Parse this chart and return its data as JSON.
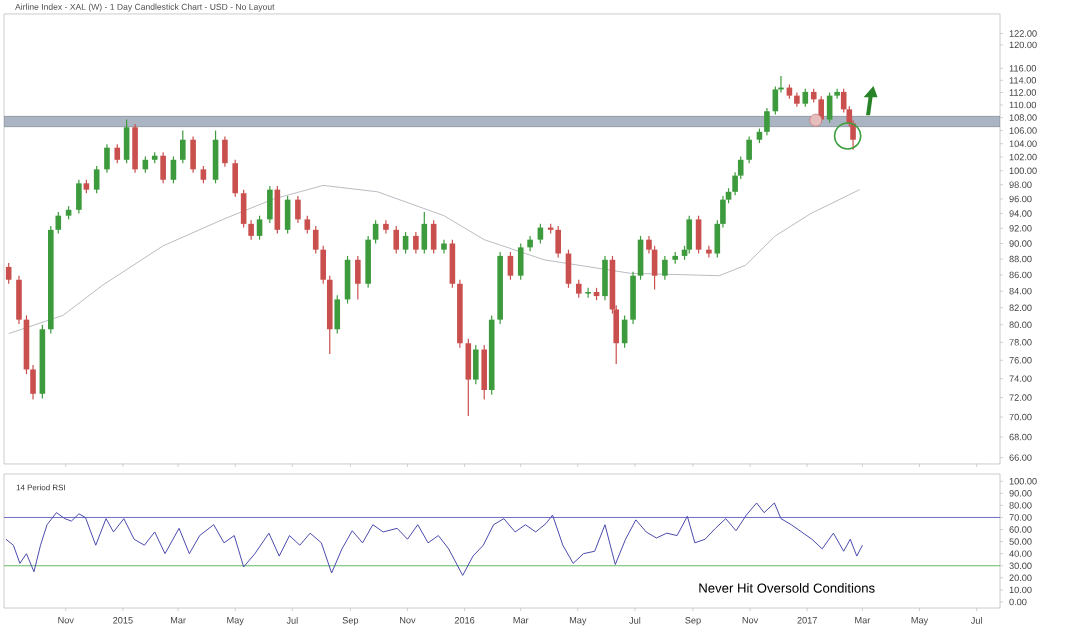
{
  "chart_data": [
    {
      "type": "candlestick",
      "title": "Airline Index - XAL (W) - 1 Day Candlestick Chart - USD - No Layout",
      "log": true,
      "tick_labels": "y",
      "xlim": [
        "2014-08-27",
        "2017-07-26"
      ],
      "xticks": [
        {
          "value": "2014-11-01",
          "label": null
        },
        {
          "value": "2015-01-01",
          "label": null
        },
        {
          "value": "2015-03-01",
          "label": null
        },
        {
          "value": "2015-05-01",
          "label": null
        },
        {
          "value": "2015-07-01",
          "label": null
        },
        {
          "value": "2015-09-01",
          "label": null
        },
        {
          "value": "2015-11-01",
          "label": null
        },
        {
          "value": "2016-01-01",
          "label": null
        },
        {
          "value": "2016-03-01",
          "label": null
        },
        {
          "value": "2016-05-01",
          "label": null
        },
        {
          "value": "2016-07-01",
          "label": null
        },
        {
          "value": "2016-09-01",
          "label": null
        },
        {
          "value": "2016-11-01",
          "label": null
        },
        {
          "value": "2017-01-01",
          "label": null
        },
        {
          "value": "2017-03-01",
          "label": null
        },
        {
          "value": "2017-05-01",
          "label": null
        },
        {
          "value": "2017-07-01",
          "label": null
        }
      ],
      "ylim": [
        65.4,
        125.5
      ],
      "yticks": [
        {
          "value": 66,
          "label": "66.00"
        },
        {
          "value": 68,
          "label": "68.00"
        },
        {
          "value": 70,
          "label": "70.00"
        },
        {
          "value": 72,
          "label": "72.00"
        },
        {
          "value": 74,
          "label": "74.00"
        },
        {
          "value": 76,
          "label": "76.00"
        },
        {
          "value": 78,
          "label": "78.00"
        },
        {
          "value": 80,
          "label": "80.00"
        },
        {
          "value": 82,
          "label": "82.00"
        },
        {
          "value": 84,
          "label": "84.00"
        },
        {
          "value": 86,
          "label": "86.00"
        },
        {
          "value": 88,
          "label": "88.00"
        },
        {
          "value": 90,
          "label": "90.00"
        },
        {
          "value": 92,
          "label": "92.00"
        },
        {
          "value": 94,
          "label": "94.00"
        },
        {
          "value": 96,
          "label": "96.00"
        },
        {
          "value": 98,
          "label": "98.00"
        },
        {
          "value": 100,
          "label": "100.00"
        },
        {
          "value": 102,
          "label": "102.00"
        },
        {
          "value": 104,
          "label": "104.00"
        },
        {
          "value": 106,
          "label": "106.00"
        },
        {
          "value": 108,
          "label": "108.00"
        },
        {
          "value": 110,
          "label": "110.00"
        },
        {
          "value": 112,
          "label": "112.00"
        },
        {
          "value": 114,
          "label": "114.00"
        },
        {
          "value": 116,
          "label": "116.00"
        },
        {
          "value": 120,
          "label": "120.00"
        },
        {
          "value": 122,
          "label": "122.00"
        }
      ],
      "bands": [
        {
          "axis": "y",
          "from": 106.6,
          "to": 108.2,
          "color": "#aab4c2"
        }
      ],
      "x": [
        "2014-09-01",
        "2014-09-12",
        "2014-09-20",
        "2014-09-27",
        "2014-10-07",
        "2014-10-16",
        "2014-10-24",
        "2014-11-04",
        "2014-11-15",
        "2014-11-23",
        "2014-12-04",
        "2014-12-15",
        "2014-12-26",
        "2015-01-05",
        "2015-01-14",
        "2015-01-25",
        "2015-02-04",
        "2015-02-13",
        "2015-02-24",
        "2015-03-06",
        "2015-03-17",
        "2015-03-28",
        "2015-04-10",
        "2015-04-20",
        "2015-05-01",
        "2015-05-10",
        "2015-05-18",
        "2015-05-27",
        "2015-06-07",
        "2015-06-15",
        "2015-06-26",
        "2015-07-07",
        "2015-07-17",
        "2015-07-26",
        "2015-08-03",
        "2015-08-10",
        "2015-08-18",
        "2015-08-29",
        "2015-09-09",
        "2015-09-20",
        "2015-09-28",
        "2015-10-09",
        "2015-10-20",
        "2015-10-30",
        "2015-11-10",
        "2015-11-19",
        "2015-11-29",
        "2015-12-10",
        "2015-12-19",
        "2015-12-27",
        "2016-01-05",
        "2016-01-13",
        "2016-01-22",
        "2016-01-30",
        "2016-02-08",
        "2016-02-19",
        "2016-03-01",
        "2016-03-11",
        "2016-03-22",
        "2016-04-02",
        "2016-04-10",
        "2016-04-21",
        "2016-05-02",
        "2016-05-12",
        "2016-05-21",
        "2016-05-30",
        "2016-06-07",
        "2016-06-11",
        "2016-06-20",
        "2016-06-29",
        "2016-07-07",
        "2016-07-16",
        "2016-07-22",
        "2016-08-02",
        "2016-08-13",
        "2016-08-23",
        "2016-08-28",
        "2016-09-07",
        "2016-09-18",
        "2016-09-27",
        "2016-10-03",
        "2016-10-09",
        "2016-10-16",
        "2016-10-22",
        "2016-10-31",
        "2016-11-11",
        "2016-11-19",
        "2016-11-28",
        "2016-12-04",
        "2016-12-13",
        "2016-12-21",
        "2016-12-30",
        "2017-01-08",
        "2017-01-16",
        "2017-01-25",
        "2017-02-02",
        "2017-02-09",
        "2017-02-15",
        "2017-02-19"
      ],
      "ohlc": [
        [
          87.0,
          87.5,
          84.9,
          85.4
        ],
        [
          85.4,
          85.9,
          80.1,
          80.6
        ],
        [
          80.6,
          81.1,
          74.5,
          75.0
        ],
        [
          75.0,
          75.5,
          71.8,
          72.4
        ],
        [
          72.4,
          80.0,
          71.9,
          79.5
        ],
        [
          79.5,
          92.3,
          79.0,
          91.8
        ],
        [
          91.8,
          94.2,
          91.3,
          93.7
        ],
        [
          93.7,
          95.0,
          93.2,
          94.5
        ],
        [
          94.5,
          98.7,
          94.0,
          98.2
        ],
        [
          98.2,
          98.7,
          96.8,
          97.3
        ],
        [
          97.3,
          100.7,
          96.8,
          100.2
        ],
        [
          100.2,
          103.9,
          99.7,
          103.4
        ],
        [
          103.4,
          103.9,
          101.1,
          101.6
        ],
        [
          101.6,
          107.7,
          101.1,
          106.5
        ],
        [
          106.5,
          107.0,
          99.7,
          100.2
        ],
        [
          100.2,
          102.1,
          99.7,
          101.6
        ],
        [
          101.6,
          102.7,
          101.1,
          102.2
        ],
        [
          102.2,
          102.7,
          98.2,
          98.7
        ],
        [
          98.7,
          102.1,
          98.2,
          101.6
        ],
        [
          101.6,
          106.0,
          101.1,
          104.6
        ],
        [
          104.6,
          105.1,
          99.7,
          100.2
        ],
        [
          100.2,
          100.7,
          98.2,
          98.7
        ],
        [
          98.7,
          106.0,
          98.2,
          104.6
        ],
        [
          104.6,
          105.1,
          100.6,
          101.1
        ],
        [
          101.1,
          101.6,
          96.3,
          96.8
        ],
        [
          96.8,
          97.3,
          92.1,
          92.6
        ],
        [
          92.6,
          93.1,
          90.5,
          91.0
        ],
        [
          91.0,
          93.7,
          90.5,
          93.2
        ],
        [
          93.2,
          97.8,
          92.7,
          97.3
        ],
        [
          97.3,
          97.8,
          91.3,
          91.8
        ],
        [
          91.8,
          96.4,
          91.3,
          95.9
        ],
        [
          95.9,
          96.4,
          92.7,
          93.2
        ],
        [
          93.2,
          93.7,
          91.3,
          91.8
        ],
        [
          91.8,
          92.3,
          88.7,
          89.2
        ],
        [
          89.2,
          89.7,
          84.9,
          85.4
        ],
        [
          85.4,
          85.9,
          76.7,
          79.5
        ],
        [
          79.5,
          83.5,
          79.0,
          83.0
        ],
        [
          83.0,
          88.4,
          82.5,
          87.9
        ],
        [
          87.9,
          88.4,
          83.0,
          84.9
        ],
        [
          84.9,
          91.0,
          84.4,
          90.5
        ],
        [
          90.5,
          93.1,
          90.0,
          92.6
        ],
        [
          92.6,
          93.1,
          91.3,
          91.8
        ],
        [
          91.8,
          92.3,
          88.7,
          89.2
        ],
        [
          89.2,
          91.5,
          88.7,
          91.0
        ],
        [
          91.0,
          91.5,
          88.7,
          89.2
        ],
        [
          89.2,
          94.2,
          88.7,
          92.6
        ],
        [
          92.6,
          93.1,
          88.7,
          89.2
        ],
        [
          89.2,
          90.5,
          88.7,
          90.0
        ],
        [
          90.0,
          90.5,
          84.4,
          84.9
        ],
        [
          84.9,
          85.4,
          77.4,
          77.9
        ],
        [
          77.9,
          78.4,
          70.1,
          73.9
        ],
        [
          73.9,
          77.7,
          73.4,
          77.2
        ],
        [
          77.2,
          77.7,
          71.8,
          72.8
        ],
        [
          72.8,
          81.1,
          72.3,
          80.6
        ],
        [
          80.6,
          88.9,
          80.1,
          88.4
        ],
        [
          88.4,
          88.9,
          85.4,
          85.9
        ],
        [
          85.9,
          90.0,
          85.4,
          89.5
        ],
        [
          89.5,
          91.0,
          89.0,
          90.5
        ],
        [
          90.5,
          92.6,
          90.0,
          92.1
        ],
        [
          92.1,
          92.6,
          91.3,
          91.8
        ],
        [
          91.8,
          92.3,
          88.2,
          88.7
        ],
        [
          88.7,
          89.2,
          84.4,
          84.9
        ],
        [
          84.9,
          85.4,
          83.2,
          83.7
        ],
        [
          83.7,
          84.4,
          83.2,
          83.9
        ],
        [
          83.9,
          84.4,
          82.9,
          83.4
        ],
        [
          83.4,
          88.4,
          82.9,
          87.9
        ],
        [
          87.9,
          88.4,
          81.3,
          81.8
        ],
        [
          81.8,
          82.3,
          75.6,
          77.9
        ],
        [
          77.9,
          81.1,
          77.4,
          80.6
        ],
        [
          80.6,
          86.4,
          80.1,
          85.9
        ],
        [
          85.9,
          91.0,
          85.4,
          90.5
        ],
        [
          90.5,
          91.0,
          88.7,
          89.2
        ],
        [
          89.2,
          89.7,
          84.2,
          85.9
        ],
        [
          85.9,
          88.4,
          85.4,
          87.9
        ],
        [
          87.9,
          88.9,
          87.4,
          88.4
        ],
        [
          88.4,
          89.7,
          87.9,
          89.2
        ],
        [
          89.2,
          93.7,
          88.7,
          93.2
        ],
        [
          93.2,
          93.7,
          88.7,
          89.2
        ],
        [
          89.2,
          89.7,
          88.2,
          88.7
        ],
        [
          88.7,
          93.1,
          88.2,
          92.6
        ],
        [
          92.6,
          96.4,
          92.1,
          95.9
        ],
        [
          95.9,
          97.5,
          95.4,
          97.0
        ],
        [
          97.0,
          99.8,
          96.5,
          99.3
        ],
        [
          99.3,
          102.1,
          98.8,
          101.6
        ],
        [
          101.6,
          105.1,
          101.1,
          104.6
        ],
        [
          104.6,
          106.3,
          104.1,
          105.8
        ],
        [
          105.8,
          109.5,
          105.3,
          109.0
        ],
        [
          109.0,
          113.0,
          108.5,
          112.5
        ],
        [
          112.5,
          114.7,
          112.0,
          112.8
        ],
        [
          112.8,
          113.3,
          111.0,
          111.5
        ],
        [
          111.5,
          112.0,
          109.7,
          110.2
        ],
        [
          110.2,
          112.6,
          109.7,
          112.1
        ],
        [
          112.1,
          112.6,
          110.4,
          110.9
        ],
        [
          110.9,
          111.4,
          107.2,
          107.7
        ],
        [
          107.7,
          112.0,
          107.2,
          111.5
        ],
        [
          111.5,
          112.6,
          111.0,
          112.1
        ],
        [
          112.1,
          112.6,
          108.8,
          109.3
        ],
        [
          109.3,
          109.8,
          106.6,
          107.1
        ],
        [
          107.1,
          107.6,
          103.1,
          104.6
        ]
      ],
      "series": [
        {
          "type": "line",
          "color": "#b9bcc2",
          "x": [
            "2014-09-01",
            "2014-10-29",
            "2014-12-10",
            "2015-02-13",
            "2015-04-18",
            "2015-06-11",
            "2015-08-03",
            "2015-09-30",
            "2015-12-10",
            "2016-01-22",
            "2016-03-26",
            "2016-06-26",
            "2016-09-29",
            "2016-10-27",
            "2016-11-28",
            "2017-01-05",
            "2017-02-26"
          ],
          "values": [
            79.0,
            81.1,
            84.7,
            89.7,
            93.2,
            96.0,
            97.9,
            97.0,
            93.7,
            90.5,
            87.9,
            86.2,
            85.9,
            87.2,
            91.0,
            94.0,
            97.3
          ]
        }
      ]
    },
    {
      "type": "line",
      "title": "14 Period RSI",
      "color": "#4a4aae",
      "xlim": [
        "2014-08-27",
        "2017-07-26"
      ],
      "xticks": [
        {
          "value": "2014-11-01",
          "label": "Nov"
        },
        {
          "value": "2015-01-01",
          "label": "2015"
        },
        {
          "value": "2015-03-01",
          "label": "Mar"
        },
        {
          "value": "2015-05-01",
          "label": "May"
        },
        {
          "value": "2015-07-01",
          "label": "Jul"
        },
        {
          "value": "2015-09-01",
          "label": "Sep"
        },
        {
          "value": "2015-11-01",
          "label": "Nov"
        },
        {
          "value": "2016-01-01",
          "label": "2016"
        },
        {
          "value": "2016-03-01",
          "label": "Mar"
        },
        {
          "value": "2016-05-01",
          "label": "May"
        },
        {
          "value": "2016-07-01",
          "label": "Jul"
        },
        {
          "value": "2016-09-01",
          "label": "Sep"
        },
        {
          "value": "2016-11-01",
          "label": "Nov"
        },
        {
          "value": "2017-01-01",
          "label": "2017"
        },
        {
          "value": "2017-03-01",
          "label": "Mar"
        },
        {
          "value": "2017-05-01",
          "label": "May"
        },
        {
          "value": "2017-07-01",
          "label": "Jul"
        }
      ],
      "ylim": [
        -5,
        106
      ],
      "yticks": [
        {
          "value": 0,
          "label": "0.00"
        },
        {
          "value": 10,
          "label": "10.00"
        },
        {
          "value": 20,
          "label": "20.00"
        },
        {
          "value": 30,
          "label": "30.00"
        },
        {
          "value": 40,
          "label": "40.00"
        },
        {
          "value": 50,
          "label": "50.00"
        },
        {
          "value": 60,
          "label": "60.00"
        },
        {
          "value": 70,
          "label": "70.00"
        },
        {
          "value": 80,
          "label": "80.00"
        },
        {
          "value": 90,
          "label": "90.00"
        },
        {
          "value": 100,
          "label": "100.00"
        }
      ],
      "ref_lines": [
        {
          "axis": "y",
          "value": 70,
          "color": "#6b6bc4"
        },
        {
          "axis": "y",
          "value": 30,
          "color": "#63b863"
        }
      ],
      "annotations": [
        "Never Hit Oversold Conditions"
      ],
      "x": [
        "2014-08-29",
        "2014-09-06",
        "2014-09-13",
        "2014-09-20",
        "2014-09-28",
        "2014-10-05",
        "2014-10-12",
        "2014-10-22",
        "2014-10-31",
        "2014-11-07",
        "2014-11-15",
        "2014-11-22",
        "2014-12-03",
        "2014-12-14",
        "2014-12-22",
        "2015-01-02",
        "2015-01-13",
        "2015-01-24",
        "2015-02-04",
        "2015-02-15",
        "2015-03-02",
        "2015-03-13",
        "2015-03-24",
        "2015-04-08",
        "2015-04-19",
        "2015-04-30",
        "2015-05-10",
        "2015-05-22",
        "2015-06-06",
        "2015-06-17",
        "2015-06-28",
        "2015-07-09",
        "2015-07-20",
        "2015-08-01",
        "2015-08-12",
        "2015-08-23",
        "2015-09-03",
        "2015-09-14",
        "2015-09-25",
        "2015-10-06",
        "2015-10-21",
        "2015-11-01",
        "2015-11-12",
        "2015-11-23",
        "2015-12-04",
        "2015-12-15",
        "2015-12-30",
        "2016-01-10",
        "2016-01-21",
        "2016-02-01",
        "2016-02-12",
        "2016-02-24",
        "2016-03-06",
        "2016-03-17",
        "2016-03-28",
        "2016-04-04",
        "2016-04-15",
        "2016-04-26",
        "2016-05-07",
        "2016-05-19",
        "2016-05-30",
        "2016-06-10",
        "2016-06-21",
        "2016-07-02",
        "2016-07-13",
        "2016-07-24",
        "2016-08-04",
        "2016-08-15",
        "2016-08-26",
        "2016-09-03",
        "2016-09-14",
        "2016-09-25",
        "2016-10-06",
        "2016-10-17",
        "2016-10-28",
        "2016-11-08",
        "2016-11-16",
        "2016-11-27",
        "2016-12-04",
        "2016-12-15",
        "2016-12-26",
        "2017-01-06",
        "2017-01-17",
        "2017-01-29",
        "2017-02-09",
        "2017-02-16",
        "2017-02-23",
        "2017-03-01"
      ],
      "values": [
        52,
        47,
        32,
        40,
        25,
        47,
        64,
        74,
        69,
        67,
        73,
        70,
        47,
        69,
        58,
        69,
        52,
        47,
        58,
        40,
        61,
        40,
        55,
        64,
        49,
        55,
        29,
        40,
        57,
        38,
        55,
        47,
        57,
        49,
        24,
        44,
        59,
        49,
        64,
        58,
        61,
        52,
        64,
        49,
        55,
        44,
        22,
        38,
        47,
        64,
        69,
        58,
        64,
        58,
        65,
        72,
        47,
        32,
        40,
        42,
        64,
        31,
        52,
        68,
        58,
        53,
        57,
        55,
        71,
        49,
        52,
        61,
        69,
        59,
        72,
        82,
        74,
        82,
        69,
        64,
        58,
        52,
        44,
        57,
        42,
        52,
        38,
        47
      ]
    }
  ]
}
